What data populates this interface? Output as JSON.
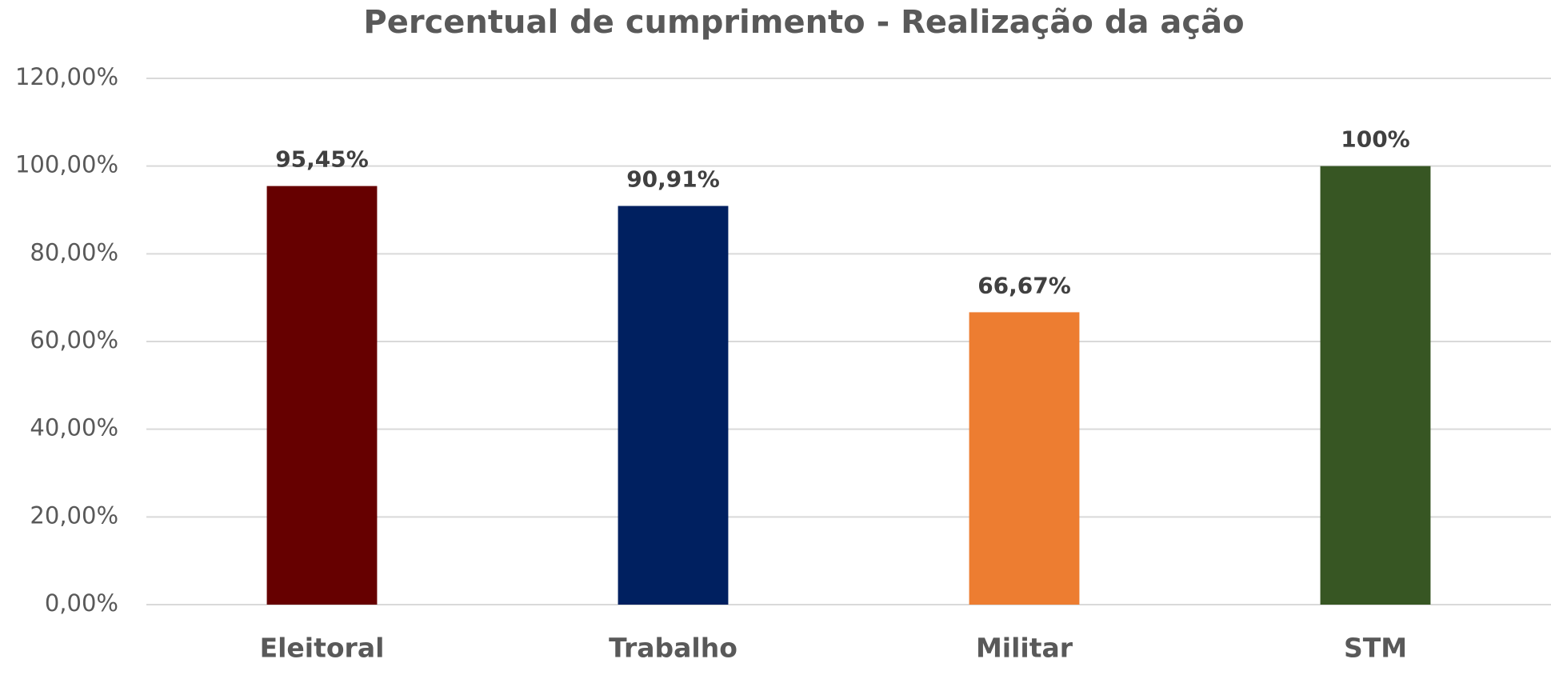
{
  "chart_data": {
    "type": "bar",
    "title": "Percentual de cumprimento  - Realização da ação",
    "categories": [
      "Eleitoral",
      "Trabalho",
      "Militar",
      "STM"
    ],
    "values": [
      95.45,
      90.91,
      66.67,
      100
    ],
    "value_labels": [
      "95,45%",
      "90,91%",
      "66,67%",
      "100%"
    ],
    "colors": [
      "#660000",
      "#002060",
      "#ED7D31",
      "#375623"
    ],
    "ylim": [
      0,
      120
    ],
    "yticks": [
      {
        "value": 0,
        "label": "0,00%"
      },
      {
        "value": 20,
        "label": "20,00%"
      },
      {
        "value": 40,
        "label": "40,00%"
      },
      {
        "value": 60,
        "label": "60,00%"
      },
      {
        "value": 80,
        "label": "80,00%"
      },
      {
        "value": 100,
        "label": "100,00%"
      },
      {
        "value": 120,
        "label": "120,00%"
      }
    ],
    "grid": true
  }
}
